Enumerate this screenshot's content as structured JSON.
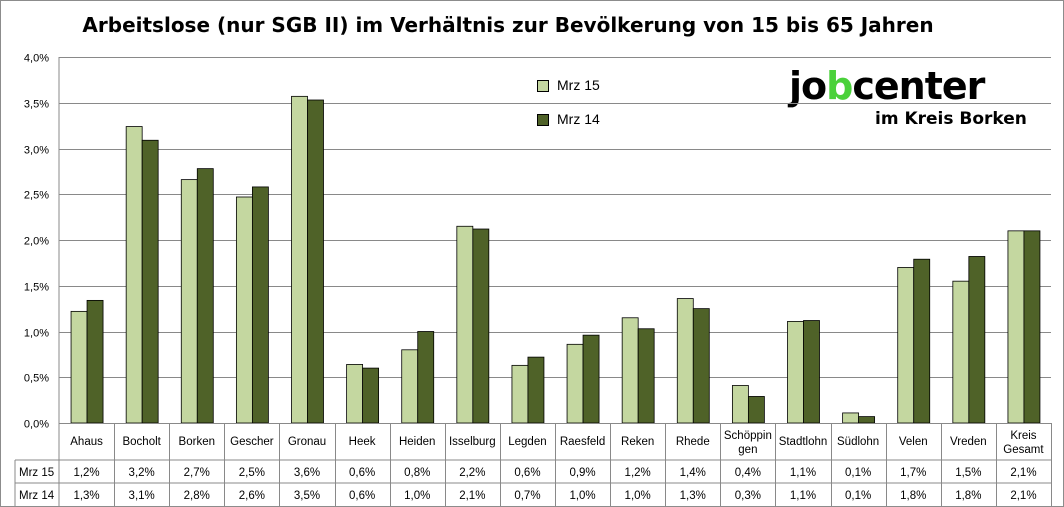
{
  "colors": {
    "mrz15": "#c4d7a0",
    "mrz14": "#4f6228",
    "grid": "#898989",
    "bar_stroke": "#000000",
    "logo_accent": "#4ad13a"
  },
  "logo": {
    "text_before": "jo",
    "text_accent": "b",
    "text_after": "center",
    "subtitle": "im Kreis Borken"
  },
  "chart_data": {
    "type": "bar",
    "title": "Arbeitslose (nur SGB II) im Verhältnis zur Bevölkerung von 15 bis 65 Jahren",
    "ylim": [
      0,
      4.0
    ],
    "yticks": [
      "0,0%",
      "0,5%",
      "1,0%",
      "1,5%",
      "2,0%",
      "2,5%",
      "3,0%",
      "3,5%",
      "4,0%"
    ],
    "grid": true,
    "legend_position": "top-center",
    "categories": [
      [
        "Ahaus"
      ],
      [
        "Bocholt"
      ],
      [
        "Borken"
      ],
      [
        "Gescher"
      ],
      [
        "Gronau"
      ],
      [
        "Heek"
      ],
      [
        "Heiden"
      ],
      [
        "Isselburg"
      ],
      [
        "Legden"
      ],
      [
        "Raesfeld"
      ],
      [
        "Reken"
      ],
      [
        "Rhede"
      ],
      [
        "Schöppin",
        "gen"
      ],
      [
        "Stadtlohn"
      ],
      [
        "Südlohn"
      ],
      [
        "Velen"
      ],
      [
        "Vreden"
      ],
      [
        "Kreis",
        "Gesamt"
      ]
    ],
    "series": [
      {
        "name": "Mrz 15",
        "values": [
          1.22,
          3.24,
          2.66,
          2.47,
          3.57,
          0.64,
          0.8,
          2.15,
          0.63,
          0.86,
          1.15,
          1.36,
          0.41,
          1.11,
          0.11,
          1.7,
          1.55,
          2.1
        ],
        "labels": [
          "1,2%",
          "3,2%",
          "2,7%",
          "2,5%",
          "3,6%",
          "0,6%",
          "0,8%",
          "2,2%",
          "0,6%",
          "0,9%",
          "1,2%",
          "1,4%",
          "0,4%",
          "1,1%",
          "0,1%",
          "1,7%",
          "1,5%",
          "2,1%"
        ]
      },
      {
        "name": "Mrz 14",
        "values": [
          1.34,
          3.09,
          2.78,
          2.58,
          3.53,
          0.6,
          1.0,
          2.12,
          0.72,
          0.96,
          1.03,
          1.25,
          0.29,
          1.12,
          0.07,
          1.79,
          1.82,
          2.1
        ],
        "labels": [
          "1,3%",
          "3,1%",
          "2,8%",
          "2,6%",
          "3,5%",
          "0,6%",
          "1,0%",
          "2,1%",
          "0,7%",
          "1,0%",
          "1,0%",
          "1,3%",
          "0,3%",
          "1,1%",
          "0,1%",
          "1,8%",
          "1,8%",
          "2,1%"
        ]
      }
    ]
  }
}
